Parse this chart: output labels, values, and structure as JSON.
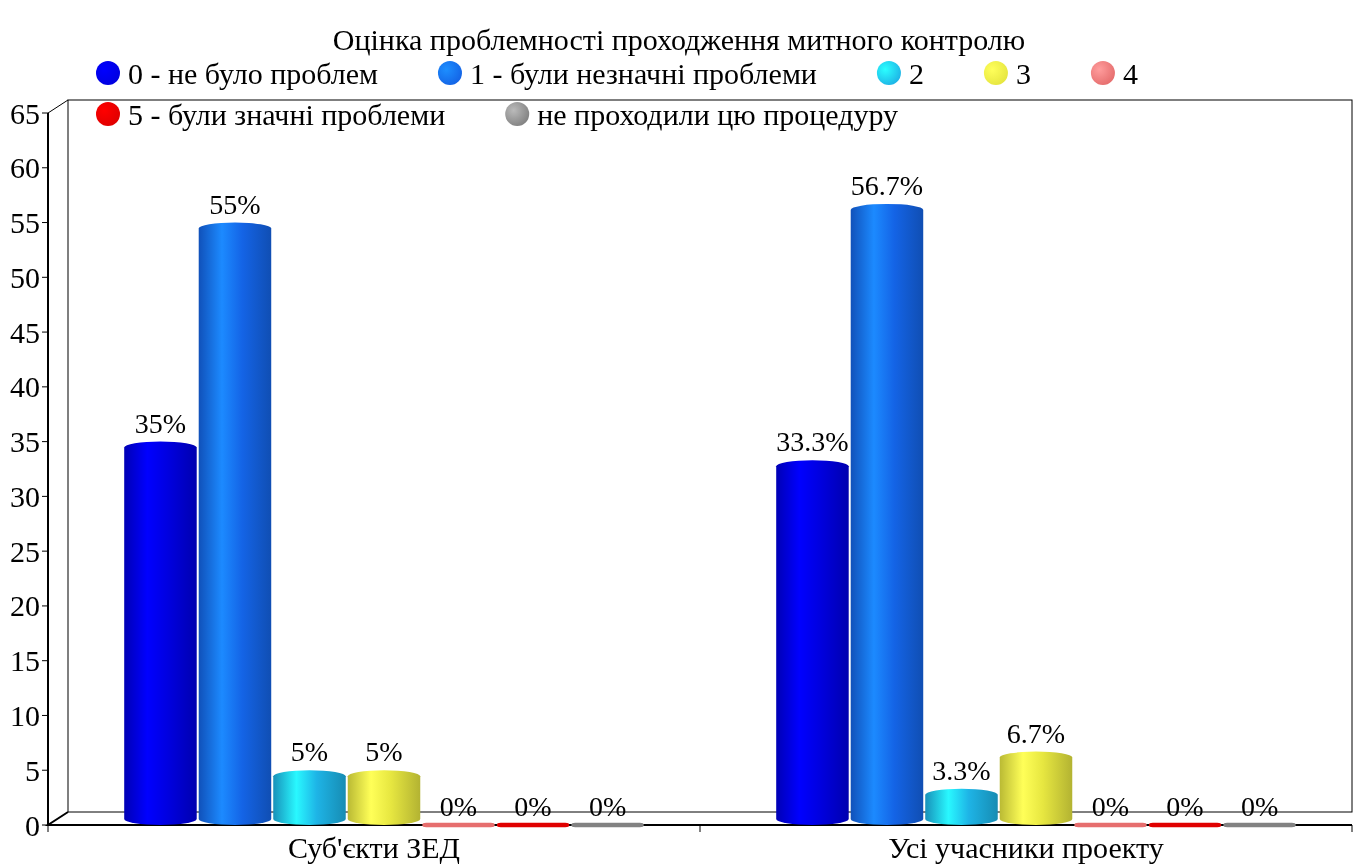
{
  "chart_data": {
    "type": "bar",
    "title": "Оцінка проблемності проходження митного контролю",
    "categories": [
      "Суб'єкти ЗЕД",
      "Усі учасники проекту"
    ],
    "series": [
      {
        "name": "0 - не було проблем",
        "color": "#0000e0",
        "values": [
          35,
          33.3
        ],
        "value_labels": [
          "35%",
          "33.3%"
        ]
      },
      {
        "name": "1 - були незначні проблеми",
        "color": "#1464e6",
        "values": [
          55,
          56.7
        ],
        "value_labels": [
          "55%",
          "56.7%"
        ]
      },
      {
        "name": "2",
        "color": "#1eb4e6",
        "values": [
          5,
          3.3
        ],
        "value_labels": [
          "5%",
          "3.3%"
        ]
      },
      {
        "name": "3",
        "color": "#e6e640",
        "values": [
          5,
          6.7
        ],
        "value_labels": [
          "5%",
          "6.7%"
        ]
      },
      {
        "name": "4",
        "color": "#e66e6e",
        "values": [
          0,
          0
        ],
        "value_labels": [
          "0%",
          "0%"
        ]
      },
      {
        "name": "5 - були значні проблеми",
        "color": "#e00000",
        "values": [
          0,
          0
        ],
        "value_labels": [
          "0%",
          "0%"
        ]
      },
      {
        "name": "не проходили цю процедуру",
        "color": "#828282",
        "values": [
          0,
          0
        ],
        "value_labels": [
          "0%",
          "0%"
        ]
      }
    ],
    "ylim": [
      0,
      65
    ],
    "yticks": [
      0,
      5,
      10,
      15,
      20,
      25,
      30,
      35,
      40,
      45,
      50,
      55,
      60,
      65
    ],
    "legend": "top"
  }
}
